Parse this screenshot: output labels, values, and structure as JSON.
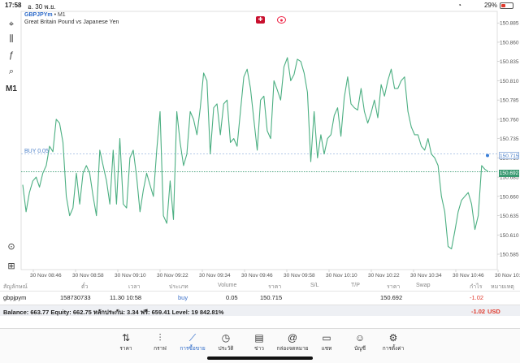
{
  "status_bar": {
    "time": "17:58",
    "date": "อ. 30 พ.ย.",
    "battery": "29%"
  },
  "toolbar": {
    "items": [
      {
        "name": "crosshair-icon",
        "glyph": "⌖"
      },
      {
        "name": "candles-icon",
        "glyph": "⫼"
      },
      {
        "name": "indicator-icon",
        "glyph": "ƒ"
      },
      {
        "name": "objects-icon",
        "glyph": "⌕"
      },
      {
        "name": "timeframe-label",
        "glyph": "M1"
      }
    ],
    "bottom": [
      {
        "name": "chart-zoom-icon",
        "glyph": "⊙"
      },
      {
        "name": "add-chart-icon",
        "glyph": "⊞"
      }
    ]
  },
  "chart": {
    "symbol": "GBPJPYm",
    "separator": " • ",
    "timeframe": "M1",
    "description": "Great Britain Pound vs Japanese Yen",
    "buy_label": "BUY 0.05",
    "buy_price": "150.715",
    "bid_price": "150.692",
    "line_color": "#4caf82",
    "buy_line_color": "#9bb7e0",
    "bid_line_color": "#3a9a72"
  },
  "chart_data": {
    "type": "line",
    "series": [
      {
        "values": [
          150.675,
          150.64,
          150.665,
          150.68,
          150.685,
          150.672,
          150.69,
          150.7,
          150.725,
          150.718,
          150.76,
          150.755,
          150.73,
          150.66,
          150.635,
          150.645,
          150.69,
          150.65,
          150.69,
          150.7,
          150.69,
          150.66,
          150.635,
          150.72,
          150.7,
          150.68,
          150.65,
          150.72,
          150.65,
          150.735,
          150.65,
          150.645,
          150.71,
          150.72,
          150.685,
          150.64,
          150.668,
          150.69,
          150.675,
          150.66,
          150.72,
          150.77,
          150.635,
          150.625,
          150.68,
          150.63,
          150.77,
          150.73,
          150.7,
          150.715,
          150.77,
          150.76,
          150.74,
          150.775,
          150.82,
          150.81,
          150.715,
          150.775,
          150.78,
          150.74,
          150.78,
          150.785,
          150.73,
          150.735,
          150.725,
          150.77,
          150.815,
          150.825,
          150.8,
          150.76,
          150.72,
          150.785,
          150.79,
          150.745,
          150.735,
          150.81,
          150.798,
          150.785,
          150.828,
          150.84,
          150.81,
          150.818,
          150.838,
          150.835,
          150.82,
          150.795,
          150.705,
          150.77,
          150.71,
          150.74,
          150.715,
          150.735,
          150.74,
          150.765,
          150.775,
          150.738,
          150.788,
          150.815,
          150.78,
          150.775,
          150.772,
          150.8,
          150.77,
          150.755,
          150.768,
          150.785,
          150.762,
          150.805,
          150.79,
          150.81,
          150.825,
          150.8,
          150.8,
          150.81,
          150.815,
          150.77,
          150.75,
          150.74,
          150.74,
          150.725,
          150.72,
          150.735,
          150.715,
          150.71,
          150.7,
          150.66,
          150.64,
          150.595,
          150.592,
          150.615,
          150.64,
          150.655,
          150.66,
          150.665,
          150.65,
          150.617,
          150.635,
          150.7,
          150.695,
          150.692
        ]
      }
    ],
    "x_tick_labels": [
      "30 Nov 08:46",
      "30 Nov 08:58",
      "30 Nov 09:10",
      "30 Nov 09:22",
      "30 Nov 09:34",
      "30 Nov 09:46",
      "30 Nov 09:58",
      "30 Nov 10:10",
      "30 Nov 10:22",
      "30 Nov 10:34",
      "30 Nov 10:46",
      "30 Nov 10:5"
    ],
    "y_tick_labels": [
      "150.885",
      "150.860",
      "150.835",
      "150.810",
      "150.785",
      "150.760",
      "150.735",
      "150.710",
      "150.685",
      "150.660",
      "150.635",
      "150.610",
      "150.585"
    ],
    "y_ticks": [
      150.885,
      150.86,
      150.835,
      150.81,
      150.785,
      150.76,
      150.735,
      150.71,
      150.685,
      150.66,
      150.635,
      150.61,
      150.585
    ],
    "ylim": [
      150.565,
      150.9
    ],
    "buy_level": 150.715,
    "bid_level": 150.692,
    "grid": false
  },
  "trades": {
    "headers": {
      "symbol": "สัญลักษณ์",
      "ticket": "ตั๋ว",
      "time": "เวลา",
      "type": "ประเภท",
      "volume": "Volume",
      "price": "ราคา",
      "sl": "S/L",
      "tp": "T/P",
      "cur_price": "ราคา",
      "swap": "Swap",
      "profit": "กำไร",
      "comment": "หมายเหตุ"
    },
    "row": {
      "symbol": "gbpjpym",
      "ticket": "158730733",
      "time": "11.30 10:58",
      "type": "buy",
      "volume": "0.05",
      "price": "150.715",
      "cur_price": "150.692",
      "profit": "-1.02"
    }
  },
  "balance": {
    "text": "Balance: 663.77 Equity: 662.75 หลักประกัน: 3.34 ฟรี: 659.41 Level: 19 842.81%",
    "value": "-1.02",
    "currency": "USD"
  },
  "tabs": [
    {
      "label": "ราคา",
      "icon": "⇅",
      "name": "tab-quotes"
    },
    {
      "label": "กราฟ",
      "icon": "⫶",
      "name": "tab-chart"
    },
    {
      "label": "การซื้อขาย",
      "icon": "⟋",
      "name": "tab-trade",
      "active": true
    },
    {
      "label": "ประวัติ",
      "icon": "◷",
      "name": "tab-history"
    },
    {
      "label": "ข่าว",
      "icon": "▤",
      "name": "tab-news"
    },
    {
      "label": "กล่องจดหมาย",
      "icon": "@",
      "name": "tab-mailbox"
    },
    {
      "label": "แชท",
      "icon": "▭",
      "name": "tab-chat"
    },
    {
      "label": "บัญชี",
      "icon": "☺",
      "name": "tab-accounts"
    },
    {
      "label": "การตั้งค่า",
      "icon": "⚙",
      "name": "tab-settings"
    }
  ]
}
